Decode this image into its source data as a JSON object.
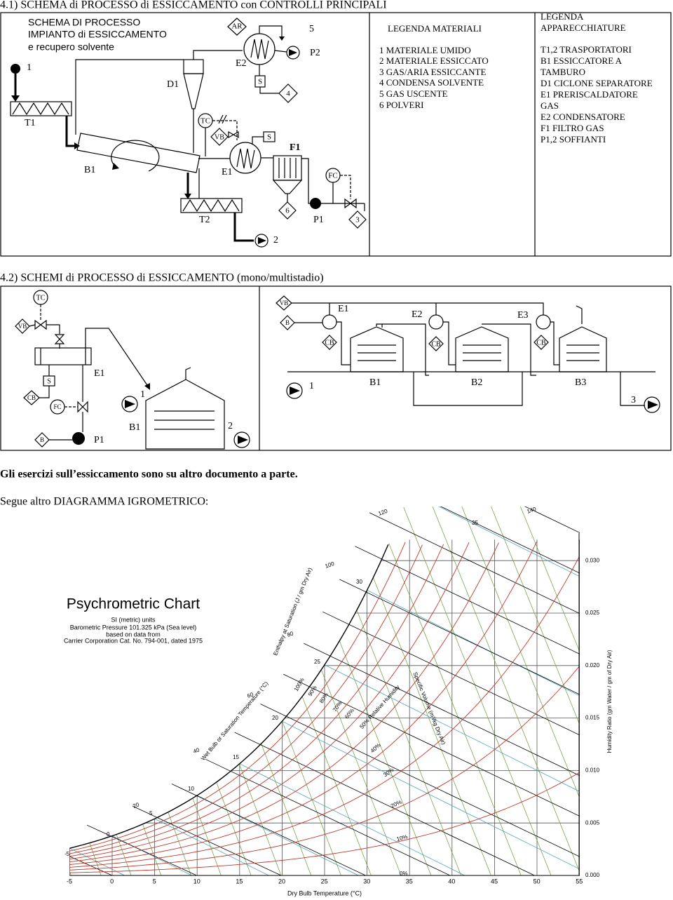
{
  "section_1": {
    "heading": "4.1)  SCHEMA di  PROCESSO  di ESSICCAMENTO  con  CONTROLLI  PRINCIPALI",
    "diagram": {
      "title": [
        "SCHEMA DI PROCESSO",
        "IMPIANTO di ESSICCAMENTO",
        "e recupero solvente"
      ],
      "labels": [
        "1",
        "T1",
        "D1",
        "AR",
        "E2",
        "5",
        "P2",
        "S",
        "4",
        "TC",
        "VB",
        "S",
        "F1",
        "B1",
        "E1",
        "FC",
        "6",
        "P1",
        "3",
        "T2",
        "2"
      ]
    },
    "legend_materials": {
      "title": "LEGENDA MATERIALI",
      "items": [
        "1 MATERIALE UMIDO",
        "2 MATERIALE ESSICCATO",
        "3 GAS/ARIA ESSICCANTE",
        "4 CONDENSA SOLVENTE",
        "5 GAS USCENTE",
        "6 POLVERI"
      ]
    },
    "legend_equipment": {
      "title": [
        "LEGENDA",
        "APPARECCHIATURE"
      ],
      "items": [
        "T1,2 TRASPORTATORI",
        "B1 ESSICCATORE A",
        "TAMBURO",
        "D1 CICLONE SEPARATORE",
        "E1 PRERISCALDATORE",
        "GAS",
        "E2 CONDENSATORE",
        "F1 FILTRO GAS",
        "P1,2 SOFFIANTI"
      ]
    }
  },
  "section_2": {
    "heading": "4.2)  SCHEMI  di  PROCESSO  di  ESSICCAMENTO  (mono/multistadio)",
    "mono": {
      "labels": [
        "TC",
        "VB",
        "E1",
        "S",
        "CB",
        "FC",
        "1",
        "B",
        "P1",
        "B1",
        "2"
      ]
    },
    "multi": {
      "labels": [
        "VB",
        "B",
        "E1",
        "E2",
        "E3",
        "CB",
        "CB",
        "CB",
        "1",
        "B1",
        "B2",
        "B3",
        "3"
      ]
    }
  },
  "notes": [
    "Gli esercizi sull’essiccamento sono su altro documento a parte.",
    "Segue altro DIAGRAMMA IGROMETRICO:"
  ],
  "psychrometric_chart": {
    "title": "Psychrometric Chart",
    "subtitle": [
      "SI (metric) units",
      "Barometric Pressure 101.325 kPa (Sea level)",
      "based on data from",
      "Carrier Corporation Cat. No. 794-001, dated 1975"
    ],
    "x_ticks": [
      "-5",
      "0",
      "5",
      "10",
      "15",
      "20",
      "25",
      "30",
      "35",
      "40",
      "45",
      "50",
      "55"
    ],
    "x_label": "Dry Bulb Temperature (°C)",
    "y_ticks": [
      "0.000",
      "0.005",
      "0.010",
      "0.015",
      "0.020",
      "0.025",
      "0.030"
    ],
    "y_label": "Humidity Ratio (gm Water / gm of Dry Air)",
    "enthalpy_label": "Enthalpy at Saturation (J / gm Dry Air)",
    "enthalpy_ticks": [
      "20",
      "40",
      "60",
      "80",
      "100",
      "120",
      "140"
    ],
    "rh_labels": [
      "0%",
      "10%",
      "20%",
      "30%",
      "40%",
      "50% Relative Humidity",
      "60%",
      "70%",
      "80%",
      "90%",
      "100%"
    ],
    "wet_bulb_label": "Wet Bulb or Saturation Temperature (°C)",
    "wet_bulb_ticks": [
      "-5",
      "0",
      "5",
      "10",
      "15",
      "20",
      "25",
      "30",
      "35"
    ],
    "volume_label": "Specific Volume (m³/kg Dry Air)"
  }
}
